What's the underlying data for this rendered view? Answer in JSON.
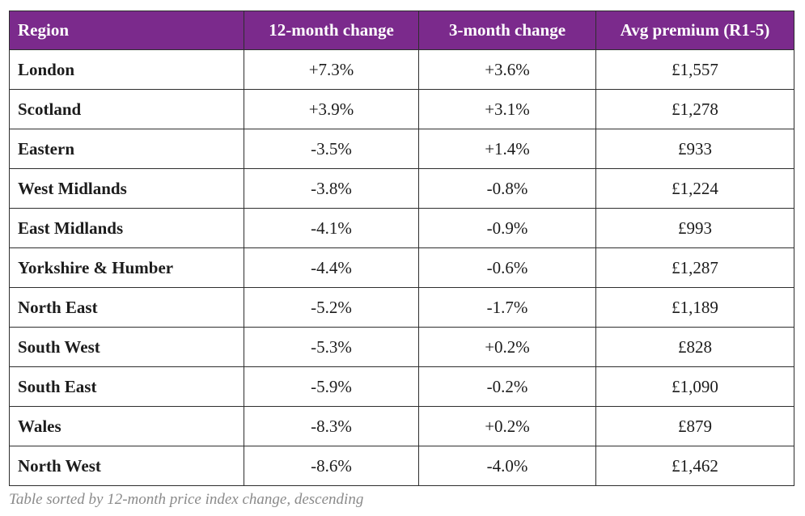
{
  "table": {
    "headers": [
      "Region",
      "12-month change",
      "3-month change",
      "Avg premium (R1-5)"
    ],
    "rows": [
      [
        "London",
        "+7.3%",
        "+3.6%",
        "£1,557"
      ],
      [
        "Scotland",
        "+3.9%",
        "+3.1%",
        "£1,278"
      ],
      [
        "Eastern",
        "-3.5%",
        "+1.4%",
        "£933"
      ],
      [
        "West Midlands",
        "-3.8%",
        "-0.8%",
        "£1,224"
      ],
      [
        "East Midlands",
        "-4.1%",
        "-0.9%",
        "£993"
      ],
      [
        "Yorkshire & Humber",
        "-4.4%",
        "-0.6%",
        "£1,287"
      ],
      [
        "North East",
        "-5.2%",
        "-1.7%",
        "£1,189"
      ],
      [
        "South West",
        "-5.3%",
        "+0.2%",
        "£828"
      ],
      [
        "South East",
        "-5.9%",
        "-0.2%",
        "£1,090"
      ],
      [
        "Wales",
        "-8.3%",
        "+0.2%",
        "£879"
      ],
      [
        "North West",
        "-8.6%",
        "-4.0%",
        "£1,462"
      ]
    ]
  },
  "caption": "Table sorted by 12-month price index change, descending",
  "colors": {
    "header_background": "#7b2a8c",
    "header_text": "#ffffff",
    "border": "#2e2e2e",
    "caption_text": "#8a8a8a"
  }
}
